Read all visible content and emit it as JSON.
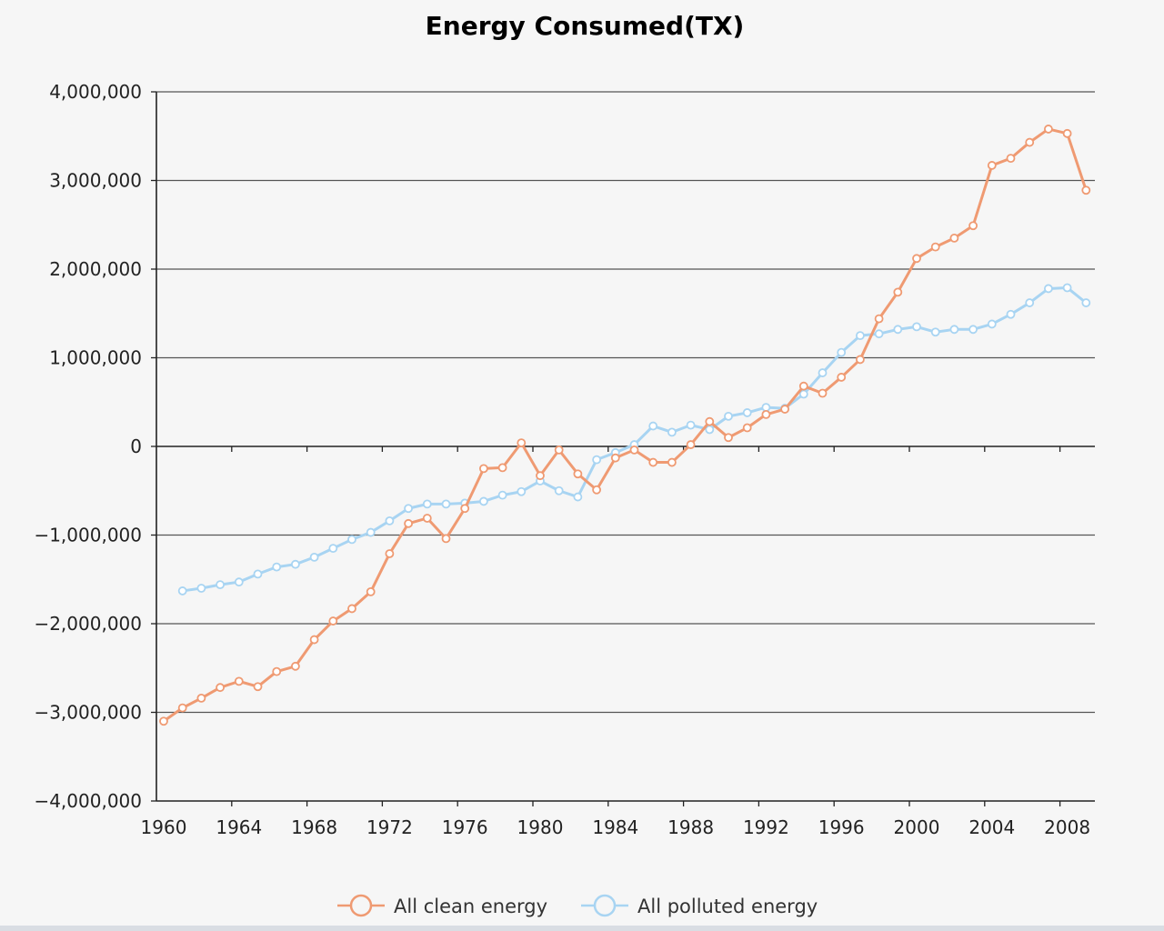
{
  "chart_data": {
    "type": "line",
    "title": "Energy Consumed(TX)",
    "xlabel": "",
    "ylabel": "",
    "xlim": [
      1960,
      2009
    ],
    "ylim": [
      -4000000,
      4000000
    ],
    "y_ticks": [
      4000000,
      3000000,
      2000000,
      1000000,
      0,
      -1000000,
      -2000000,
      -3000000,
      -4000000
    ],
    "y_tick_labels": [
      "4,000,000",
      "3,000,000",
      "2,000,000",
      "1,000,000",
      "0",
      "−1,000,000",
      "−2,000,000",
      "−3,000,000",
      "−4,000,000"
    ],
    "x_ticks": [
      1960,
      1964,
      1968,
      1972,
      1976,
      1980,
      1984,
      1988,
      1992,
      1996,
      2000,
      2004,
      2008
    ],
    "x_tick_labels": [
      "1960",
      "1964",
      "1968",
      "1972",
      "1976",
      "1980",
      "1984",
      "1988",
      "1992",
      "1996",
      "2000",
      "2004",
      "2008"
    ],
    "grid": true,
    "legend_position": "bottom-center",
    "series": [
      {
        "name": "All clean energy",
        "color": "#ef9a72",
        "x": [
          1960,
          1961,
          1962,
          1963,
          1964,
          1965,
          1966,
          1967,
          1968,
          1969,
          1970,
          1971,
          1972,
          1973,
          1974,
          1975,
          1976,
          1977,
          1978,
          1979,
          1980,
          1981,
          1982,
          1983,
          1984,
          1985,
          1986,
          1987,
          1988,
          1989,
          1990,
          1991,
          1992,
          1993,
          1994,
          1995,
          1996,
          1997,
          1998,
          1999,
          2000,
          2001,
          2002,
          2003,
          2004,
          2005,
          2006,
          2007,
          2008,
          2009
        ],
        "values": [
          -3100000,
          -2950000,
          -2840000,
          -2720000,
          -2650000,
          -2710000,
          -2540000,
          -2480000,
          -2180000,
          -1970000,
          -1830000,
          -1640000,
          -1210000,
          -870000,
          -810000,
          -1040000,
          -700000,
          -250000,
          -240000,
          40000,
          -330000,
          -40000,
          -310000,
          -490000,
          -130000,
          -40000,
          -180000,
          -180000,
          20000,
          280000,
          100000,
          210000,
          360000,
          420000,
          680000,
          600000,
          780000,
          980000,
          1440000,
          1740000,
          2120000,
          2250000,
          2350000,
          2490000,
          3170000,
          3250000,
          3430000,
          3580000,
          3530000,
          2890000
        ]
      },
      {
        "name": "All polluted energy",
        "color": "#a8d4f2",
        "x": [
          1961,
          1962,
          1963,
          1964,
          1965,
          1966,
          1967,
          1968,
          1969,
          1970,
          1971,
          1972,
          1973,
          1974,
          1975,
          1976,
          1977,
          1978,
          1979,
          1980,
          1981,
          1982,
          1983,
          1984,
          1985,
          1986,
          1987,
          1988,
          1989,
          1990,
          1991,
          1992,
          1993,
          1994,
          1995,
          1996,
          1997,
          1998,
          1999,
          2000,
          2001,
          2002,
          2003,
          2004,
          2005,
          2006,
          2007,
          2008,
          2009
        ],
        "values": [
          -1630000,
          -1600000,
          -1560000,
          -1530000,
          -1440000,
          -1360000,
          -1330000,
          -1250000,
          -1150000,
          -1050000,
          -970000,
          -840000,
          -700000,
          -650000,
          -650000,
          -640000,
          -620000,
          -550000,
          -510000,
          -390000,
          -500000,
          -570000,
          -150000,
          -70000,
          20000,
          230000,
          160000,
          240000,
          190000,
          340000,
          380000,
          440000,
          430000,
          590000,
          830000,
          1060000,
          1250000,
          1270000,
          1320000,
          1350000,
          1290000,
          1320000,
          1320000,
          1380000,
          1490000,
          1620000,
          1780000,
          1790000,
          1620000
        ]
      }
    ]
  }
}
